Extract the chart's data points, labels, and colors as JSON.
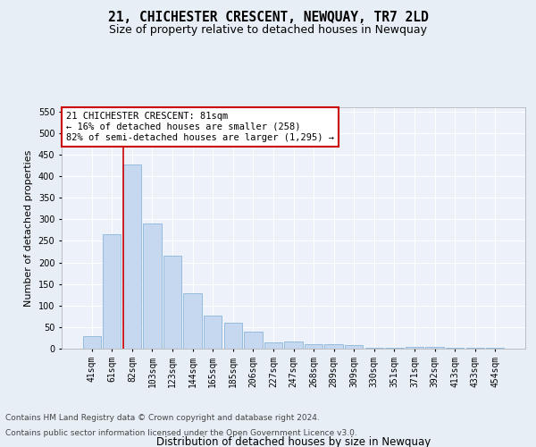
{
  "title": "21, CHICHESTER CRESCENT, NEWQUAY, TR7 2LD",
  "subtitle": "Size of property relative to detached houses in Newquay",
  "xlabel": "Distribution of detached houses by size in Newquay",
  "ylabel": "Number of detached properties",
  "categories": [
    "41sqm",
    "61sqm",
    "82sqm",
    "103sqm",
    "123sqm",
    "144sqm",
    "165sqm",
    "185sqm",
    "206sqm",
    "227sqm",
    "247sqm",
    "268sqm",
    "289sqm",
    "309sqm",
    "330sqm",
    "351sqm",
    "371sqm",
    "392sqm",
    "413sqm",
    "433sqm",
    "454sqm"
  ],
  "values": [
    30,
    265,
    427,
    290,
    215,
    128,
    76,
    60,
    40,
    14,
    16,
    10,
    10,
    8,
    3,
    3,
    5,
    5,
    3,
    3,
    3
  ],
  "bar_color": "#c5d8f0",
  "bar_edge_color": "#7aadd4",
  "highlight_line_index": 2,
  "highlight_line_color": "#cc0000",
  "annotation_text": "21 CHICHESTER CRESCENT: 81sqm\n← 16% of detached houses are smaller (258)\n82% of semi-detached houses are larger (1,295) →",
  "annotation_box_color": "#ffffff",
  "annotation_box_edge_color": "#cc0000",
  "ylim": [
    0,
    560
  ],
  "yticks": [
    0,
    50,
    100,
    150,
    200,
    250,
    300,
    350,
    400,
    450,
    500,
    550
  ],
  "bg_color": "#e8eef6",
  "plot_bg_color": "#edf2fa",
  "footer_line1": "Contains HM Land Registry data © Crown copyright and database right 2024.",
  "footer_line2": "Contains public sector information licensed under the Open Government Licence v3.0.",
  "title_fontsize": 10.5,
  "subtitle_fontsize": 9,
  "xlabel_fontsize": 8.5,
  "ylabel_fontsize": 8,
  "tick_fontsize": 7,
  "annotation_fontsize": 7.5,
  "footer_fontsize": 6.5
}
